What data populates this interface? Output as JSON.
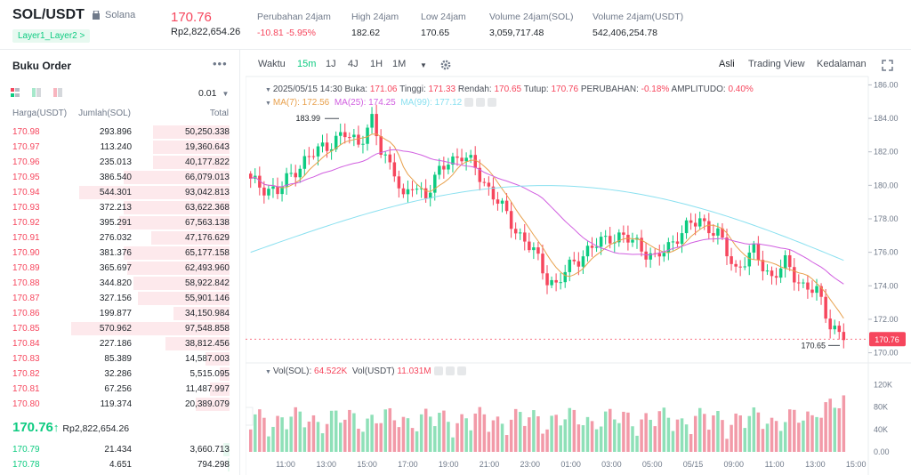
{
  "header": {
    "pair": "SOL/USDT",
    "coin": "Solana",
    "tag": "Layer1_Layer2 >",
    "price": "170.76",
    "price_idr": "Rp2,822,654.26",
    "stats": [
      {
        "label": "Perubahan 24jam",
        "value": "-10.81 -5.95%",
        "red": true
      },
      {
        "label": "High 24jam",
        "value": "182.62"
      },
      {
        "label": "Low 24jam",
        "value": "170.65"
      },
      {
        "label": "Volume 24jam(SOL)",
        "value": "3,059,717.48"
      },
      {
        "label": "Volume 24jam(USDT)",
        "value": "542,406,254.78"
      }
    ]
  },
  "orderbook": {
    "title": "Buku Order",
    "more": "•••",
    "precision": "0.01",
    "col_price": "Harga(USDT)",
    "col_amount": "Jumlah(SOL)",
    "col_total": "Total",
    "asks": [
      {
        "p": "170.98",
        "a": "293.896",
        "t": "50,250.338",
        "d": 0.48
      },
      {
        "p": "170.97",
        "a": "113.240",
        "t": "19,360.643",
        "d": 0.48
      },
      {
        "p": "170.96",
        "a": "235.013",
        "t": "40,177.822",
        "d": 0.48
      },
      {
        "p": "170.95",
        "a": "386.540",
        "t": "66,079.013",
        "d": 0.66
      },
      {
        "p": "170.94",
        "a": "544.301",
        "t": "93,042.813",
        "d": 0.94
      },
      {
        "p": "170.93",
        "a": "372.213",
        "t": "63,622.368",
        "d": 0.66
      },
      {
        "p": "170.92",
        "a": "395.291",
        "t": "67,563.138",
        "d": 0.69
      },
      {
        "p": "170.91",
        "a": "276.032",
        "t": "47,176.629",
        "d": 0.49
      },
      {
        "p": "170.90",
        "a": "381.376",
        "t": "65,177.158",
        "d": 0.66
      },
      {
        "p": "170.89",
        "a": "365.697",
        "t": "62,493.960",
        "d": 0.64
      },
      {
        "p": "170.88",
        "a": "344.820",
        "t": "58,922.842",
        "d": 0.6
      },
      {
        "p": "170.87",
        "a": "327.156",
        "t": "55,901.146",
        "d": 0.57
      },
      {
        "p": "170.86",
        "a": "199.877",
        "t": "34,150.984",
        "d": 0.35
      },
      {
        "p": "170.85",
        "a": "570.962",
        "t": "97,548.858",
        "d": 0.99
      },
      {
        "p": "170.84",
        "a": "227.186",
        "t": "38,812.456",
        "d": 0.4
      },
      {
        "p": "170.83",
        "a": "85.389",
        "t": "14,587.003",
        "d": 0.15
      },
      {
        "p": "170.82",
        "a": "32.286",
        "t": "5,515.095",
        "d": 0.06
      },
      {
        "p": "170.81",
        "a": "67.256",
        "t": "11,487.997",
        "d": 0.12
      },
      {
        "p": "170.80",
        "a": "119.374",
        "t": "20,389.079",
        "d": 0.21
      }
    ],
    "mid_price": "170.76",
    "mid_arrow": "↑",
    "mid_idr": "Rp2,822,654.26",
    "bids": [
      {
        "p": "170.79",
        "a": "21.434",
        "t": "3,660.713",
        "d": 0.04
      },
      {
        "p": "170.78",
        "a": "4.651",
        "t": "794.298",
        "d": 0.01
      }
    ]
  },
  "chart_toolbar": {
    "time": "Waktu",
    "intervals": [
      "15m",
      "1J",
      "4J",
      "1H",
      "1M"
    ],
    "active": "15m",
    "views": [
      "Asli",
      "Trading View",
      "Kedalaman"
    ],
    "active_view": "Asli"
  },
  "chart_info": {
    "date": "2025/05/15 14:30",
    "open_l": "Buka:",
    "open": "171.06",
    "high_l": "Tinggi:",
    "high": "171.33",
    "low_l": "Rendah:",
    "low": "170.65",
    "close_l": "Tutup:",
    "close": "170.76",
    "chg_l": "PERUBAHAN:",
    "chg": "-0.18%",
    "amp_l": "AMPLITUDO:",
    "amp": "0.40%",
    "ma7": "MA(7): 172.56",
    "ma25": "MA(25): 174.25",
    "ma99": "MA(99): 177.12",
    "vol_l": "Vol(SOL):",
    "vol": "64.522K",
    "volu_l": "Vol(USDT)",
    "volu": "11.031M"
  },
  "chart_data": {
    "type": "candlestick",
    "x_ticks": [
      "11:00",
      "13:00",
      "15:00",
      "17:00",
      "19:00",
      "21:00",
      "23:00",
      "01:00",
      "03:00",
      "05:00",
      "05/15",
      "09:00",
      "11:00",
      "13:00",
      "15:00"
    ],
    "y_ticks": [
      "186.00",
      "184.00",
      "182.00",
      "180.00",
      "178.00",
      "176.00",
      "174.00",
      "172.00",
      "170.00"
    ],
    "ylim": [
      169.5,
      186.5
    ],
    "vol_ticks": [
      "120K",
      "80K",
      "40K",
      "0.00"
    ],
    "vol_ylim": [
      0,
      130000
    ],
    "high_label": "183.99",
    "low_label": "170.65",
    "last_price": "170.76",
    "colors": {
      "up": "#0ecb81",
      "down": "#f6465d",
      "ma7": "#e8a04c",
      "ma25": "#d15fe0",
      "ma99": "#8ae0f0"
    }
  }
}
